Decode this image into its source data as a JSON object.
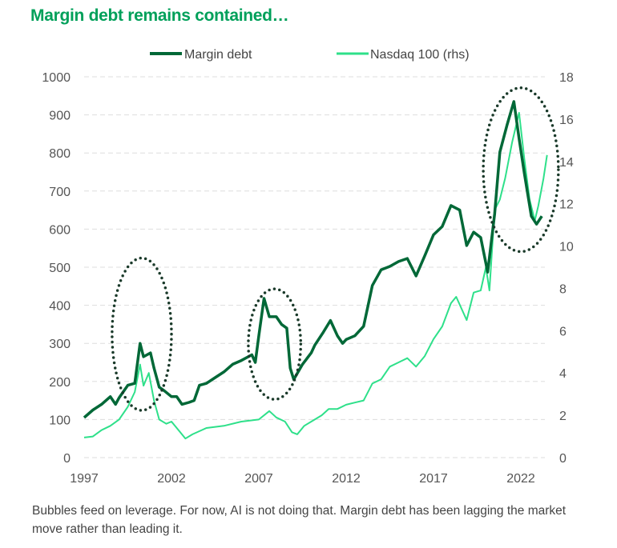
{
  "chart_data": {
    "type": "line",
    "title": "Margin debt remains contained…",
    "caption": "Bubbles feed on leverage. For now, AI is not doing that. Margin debt has been lagging the market move rather than leading it.",
    "legend_position": "top",
    "grid": "horizontal dashed",
    "x_ticks": [
      "1997",
      "2002",
      "2007",
      "2012",
      "2017",
      "2022"
    ],
    "xlim": [
      1997,
      2023.5
    ],
    "y_left": {
      "ticks": [
        "0",
        "100",
        "200",
        "300",
        "400",
        "500",
        "600",
        "700",
        "800",
        "900",
        "1000"
      ],
      "ylim": [
        0,
        1000
      ]
    },
    "y_right": {
      "ticks": [
        "0",
        "2",
        "4",
        "6",
        "8",
        "10",
        "12",
        "14",
        "16",
        "18"
      ],
      "ylim": [
        0,
        18
      ]
    },
    "series": [
      {
        "name": "Margin debt",
        "axis": "left",
        "color": "#006837",
        "x": [
          1997,
          1997.5,
          1998,
          1998.5,
          1998.8,
          1999,
          1999.5,
          1999.9,
          2000.2,
          2000.4,
          2000.8,
          2001,
          2001.3,
          2001.6,
          2002,
          2002.3,
          2002.6,
          2003,
          2003.3,
          2003.6,
          2004,
          2004.5,
          2005,
          2005.5,
          2006,
          2006.6,
          2006.8,
          2007.0,
          2007.3,
          2007.6,
          2008,
          2008.3,
          2008.6,
          2008.8,
          2009,
          2009.5,
          2010,
          2010.2,
          2010.7,
          2011.1,
          2011.5,
          2011.8,
          2012,
          2012.5,
          2013,
          2013.5,
          2014,
          2014.5,
          2015,
          2015.5,
          2016,
          2016.5,
          2017,
          2017.5,
          2018,
          2018.5,
          2018.9,
          2019.3,
          2019.7,
          2020.1,
          2020.5,
          2020.8,
          2021.2,
          2021.6,
          2021.9,
          2022.2,
          2022.6,
          2022.9,
          2023.2
        ],
        "y": [
          105,
          125,
          140,
          160,
          140,
          157,
          190,
          195,
          300,
          265,
          275,
          235,
          185,
          175,
          160,
          160,
          140,
          145,
          150,
          190,
          195,
          210,
          225,
          245,
          255,
          270,
          250,
          320,
          418,
          370,
          370,
          350,
          340,
          235,
          205,
          245,
          275,
          295,
          330,
          360,
          320,
          300,
          310,
          320,
          345,
          452,
          493,
          502,
          515,
          523,
          477,
          530,
          585,
          607,
          662,
          650,
          557,
          592,
          578,
          487,
          640,
          802,
          872,
          935,
          838,
          746,
          634,
          613,
          634
        ]
      },
      {
        "name": "Nasdaq 100 (rhs)",
        "axis": "right",
        "color": "#2ee08a",
        "x": [
          1997,
          1997.5,
          1998,
          1998.5,
          1999,
          1999.5,
          1999.9,
          2000.2,
          2000.4,
          2000.7,
          2001,
          2001.3,
          2001.7,
          2002,
          2002.5,
          2002.8,
          2003.2,
          2004,
          2005,
          2006,
          2007,
          2007.6,
          2008,
          2008.5,
          2008.9,
          2009.2,
          2009.6,
          2010.2,
          2010.6,
          2011,
          2011.5,
          2012,
          2012.5,
          2013,
          2013.5,
          2014,
          2014.5,
          2015,
          2015.5,
          2016,
          2016.5,
          2017,
          2017.5,
          2018,
          2018.3,
          2018.9,
          2019.3,
          2019.7,
          2020,
          2020.2,
          2020.5,
          2020.8,
          2021.1,
          2021.5,
          2021.9,
          2022.2,
          2022.5,
          2022.8,
          2023,
          2023.3,
          2023.5
        ],
        "y": [
          0.95,
          1.0,
          1.3,
          1.5,
          1.8,
          2.4,
          3.1,
          4.4,
          3.4,
          4.0,
          2.7,
          1.8,
          1.6,
          1.7,
          1.2,
          0.9,
          1.1,
          1.4,
          1.5,
          1.7,
          1.8,
          2.2,
          1.9,
          1.7,
          1.2,
          1.1,
          1.5,
          1.8,
          2.0,
          2.3,
          2.3,
          2.5,
          2.6,
          2.7,
          3.5,
          3.7,
          4.3,
          4.5,
          4.7,
          4.3,
          4.8,
          5.6,
          6.2,
          7.3,
          7.6,
          6.5,
          7.8,
          7.9,
          9.0,
          7.9,
          11.7,
          12.2,
          13.2,
          14.9,
          16.3,
          14.1,
          12.2,
          11.2,
          11.9,
          13.2,
          14.3
        ]
      }
    ],
    "annotations": [
      {
        "type": "dotted-ellipse",
        "center": [
          2000.3,
          324
        ],
        "radius": [
          1.7,
          200
        ]
      },
      {
        "type": "dotted-ellipse",
        "center": [
          2007.9,
          298
        ],
        "radius": [
          1.5,
          145
        ]
      },
      {
        "type": "dotted-ellipse",
        "center": [
          2022.0,
          756
        ],
        "radius": [
          2.15,
          215
        ]
      }
    ]
  }
}
